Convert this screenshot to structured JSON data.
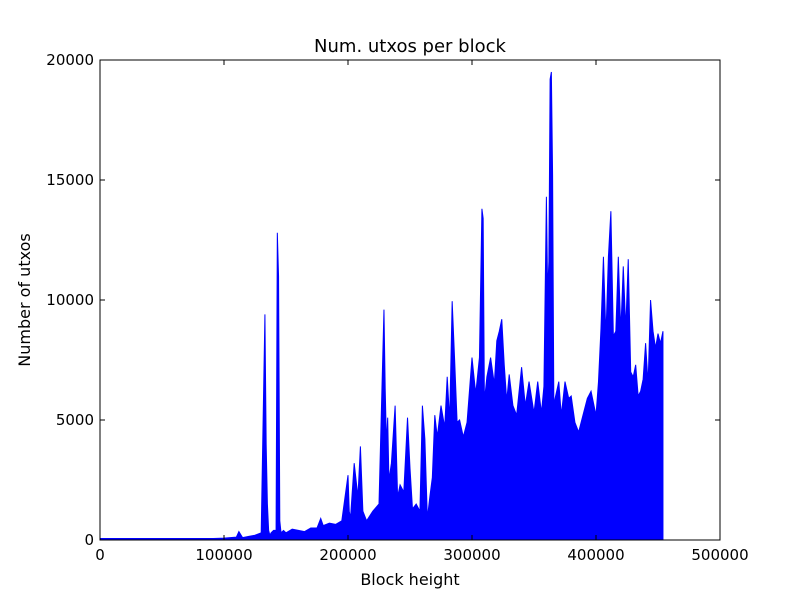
{
  "chart_data": {
    "type": "line",
    "title": "Num. utxos per block",
    "xlabel": "Block height",
    "ylabel": "Number of utxos",
    "xlim": [
      0,
      500000
    ],
    "ylim": [
      0,
      20000
    ],
    "xticks": [
      0,
      100000,
      200000,
      300000,
      400000,
      500000
    ],
    "yticks": [
      0,
      5000,
      10000,
      15000,
      20000
    ],
    "xtick_labels": [
      "0",
      "100000",
      "200000",
      "300000",
      "400000",
      "500000"
    ],
    "ytick_labels": [
      "0",
      "5000",
      "10000",
      "15000",
      "20000"
    ],
    "grid": false,
    "colors": {
      "series": "#0000ff"
    },
    "series": [
      {
        "x": [
          0,
          20000,
          50000,
          80000,
          100000,
          110000,
          112000,
          115000,
          120000,
          125000,
          130000,
          133000,
          134000,
          135000,
          136000,
          137000,
          138000,
          140000,
          142000,
          143000,
          144000,
          145000,
          146000,
          148000,
          150000,
          155000,
          160000,
          165000,
          170000,
          175000,
          178000,
          180000,
          185000,
          190000,
          195000,
          200000,
          201000,
          202000,
          205000,
          208000,
          210000,
          212000,
          215000,
          220000,
          225000,
          229000,
          230000,
          231000,
          232000,
          233000,
          235000,
          238000,
          240000,
          242000,
          245000,
          248000,
          250000,
          252000,
          255000,
          258000,
          260000,
          262000,
          264000,
          266000,
          268000,
          270000,
          272000,
          275000,
          278000,
          280000,
          282000,
          284000,
          286000,
          288000,
          290000,
          293000,
          296000,
          300000,
          303000,
          306000,
          308000,
          309000,
          310000,
          312000,
          315000,
          318000,
          320000,
          322000,
          324000,
          326000,
          328000,
          330000,
          333000,
          336000,
          340000,
          343000,
          346000,
          350000,
          353000,
          356000,
          358000,
          360000,
          361000,
          362000,
          363000,
          364000,
          365000,
          366000,
          367000,
          370000,
          372000,
          375000,
          378000,
          380000,
          383000,
          386000,
          390000,
          393000,
          396000,
          400000,
          402000,
          404000,
          406000,
          408000,
          410000,
          412000,
          414000,
          416000,
          418000,
          420000,
          422000,
          424000,
          426000,
          428000,
          430000,
          432000,
          434000,
          436000,
          438000,
          440000,
          442000,
          444000,
          446000,
          448000,
          450000,
          452000,
          454000
        ],
        "y": [
          0,
          0,
          20,
          40,
          80,
          120,
          350,
          100,
          150,
          200,
          300,
          9400,
          4000,
          1500,
          400,
          200,
          300,
          400,
          400,
          12800,
          11000,
          800,
          300,
          400,
          300,
          450,
          400,
          350,
          500,
          500,
          900,
          600,
          700,
          650,
          800,
          2700,
          1200,
          900,
          3200,
          1800,
          3900,
          1200,
          800,
          1200,
          1500,
          9600,
          6300,
          4000,
          5100,
          2500,
          3200,
          5600,
          1800,
          2300,
          2000,
          5100,
          3000,
          1300,
          1500,
          1200,
          5600,
          4200,
          900,
          1800,
          2600,
          5200,
          4300,
          5600,
          4700,
          6800,
          5000,
          9950,
          7500,
          4900,
          5000,
          4300,
          4900,
          7600,
          6100,
          7600,
          13800,
          13400,
          5800,
          6800,
          7600,
          6500,
          8300,
          8700,
          9200,
          7300,
          5800,
          6900,
          5600,
          5200,
          7200,
          5600,
          6600,
          5300,
          6600,
          5300,
          6400,
          14300,
          10300,
          11600,
          19200,
          19500,
          15200,
          5600,
          5900,
          6600,
          5200,
          6600,
          5900,
          6000,
          4900,
          4500,
          5300,
          5900,
          6200,
          5200,
          6600,
          8800,
          11800,
          8500,
          11800,
          13700,
          8500,
          8700,
          11800,
          8700,
          11400,
          8800,
          11700,
          7000,
          6800,
          7300,
          6000,
          6200,
          6700,
          8200,
          6500,
          10000,
          8700,
          8000,
          8600,
          8200,
          8700
        ]
      }
    ]
  }
}
